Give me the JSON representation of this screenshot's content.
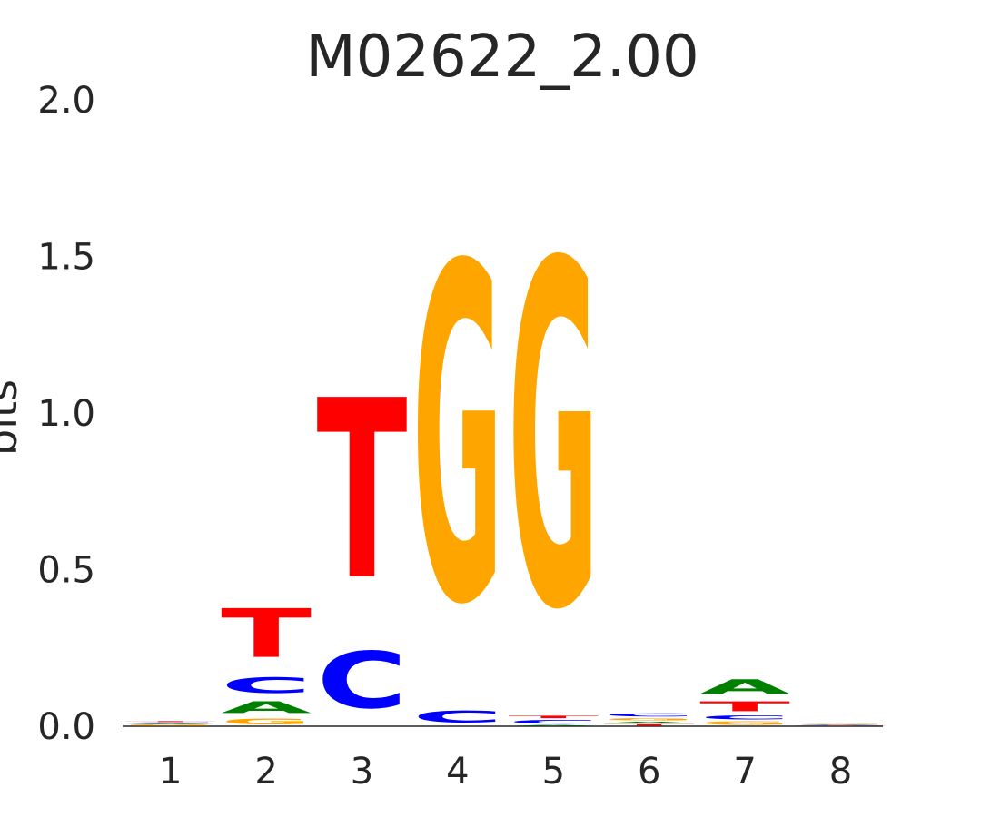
{
  "chart_data": {
    "type": "sequence-logo",
    "title": "M02622_2.00",
    "ylabel": "bits",
    "ylim": [
      0,
      2
    ],
    "yticks": [
      "0.0",
      "0.5",
      "1.0",
      "1.5",
      "2.0"
    ],
    "ytick_values": [
      0,
      0.5,
      1.0,
      1.5,
      2.0
    ],
    "positions": [
      "1",
      "2",
      "3",
      "4",
      "5",
      "6",
      "7",
      "8"
    ],
    "colors": {
      "A": "#008000",
      "C": "#0000ff",
      "G": "#ffa500",
      "T": "#ff0000"
    },
    "letters": [
      [
        {
          "base": "G",
          "bits": 0.005
        },
        {
          "base": "A",
          "bits": 0.004
        },
        {
          "base": "C",
          "bits": 0.004
        },
        {
          "base": "T",
          "bits": 0.004
        }
      ],
      [
        {
          "base": "G",
          "bits": 0.03
        },
        {
          "base": "A",
          "bits": 0.06
        },
        {
          "base": "C",
          "bits": 0.08
        },
        {
          "base": "T",
          "bits": 0.25
        }
      ],
      [
        {
          "base": "C",
          "bits": 0.29
        },
        {
          "base": "T",
          "bits": 0.92
        }
      ],
      [
        {
          "base": "C",
          "bits": 0.06
        },
        {
          "base": "G",
          "bits": 1.72
        }
      ],
      [
        {
          "base": "A",
          "bits": 0.005
        },
        {
          "base": "C",
          "bits": 0.018
        },
        {
          "base": "T",
          "bits": 0.013
        },
        {
          "base": "G",
          "bits": 1.76
        }
      ],
      [
        {
          "base": "T",
          "bits": 0.008
        },
        {
          "base": "A",
          "bits": 0.008
        },
        {
          "base": "G",
          "bits": 0.012
        },
        {
          "base": "C",
          "bits": 0.016
        }
      ],
      [
        {
          "base": "G",
          "bits": 0.018
        },
        {
          "base": "C",
          "bits": 0.02
        },
        {
          "base": "T",
          "bits": 0.05
        },
        {
          "base": "A",
          "bits": 0.075
        }
      ],
      [
        {
          "base": "T",
          "bits": 0.002
        },
        {
          "base": "A",
          "bits": 0.002
        },
        {
          "base": "C",
          "bits": 0.002
        },
        {
          "base": "G",
          "bits": 0.002
        }
      ]
    ]
  }
}
